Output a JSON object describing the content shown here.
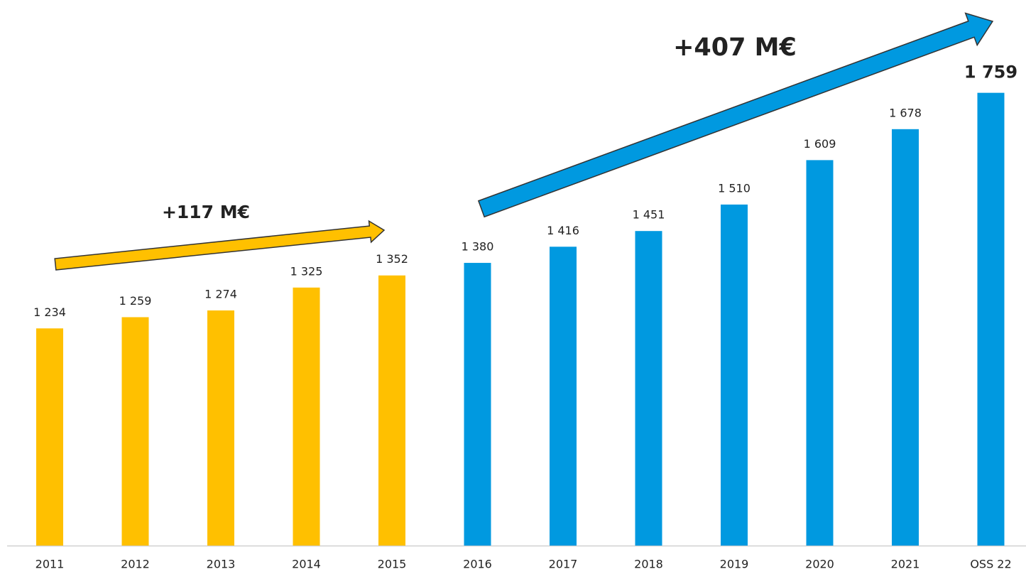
{
  "chart_data": {
    "type": "bar",
    "categories": [
      "2011",
      "2012",
      "2013",
      "2014",
      "2015",
      "2016",
      "2017",
      "2018",
      "2019",
      "2020",
      "2021",
      "OSS 22"
    ],
    "values": [
      1234,
      1259,
      1274,
      1325,
      1352,
      1380,
      1416,
      1451,
      1510,
      1609,
      1678,
      1759
    ],
    "value_labels": [
      "1 234",
      "1 259",
      "1 274",
      "1 325",
      "1 352",
      "1 380",
      "1 416",
      "1 451",
      "1 510",
      "1 609",
      "1 678",
      "1 759"
    ],
    "colors": [
      "#FFC000",
      "#FFC000",
      "#FFC000",
      "#FFC000",
      "#FFC000",
      "#0099E0",
      "#0099E0",
      "#0099E0",
      "#0099E0",
      "#0099E0",
      "#0099E0",
      "#0099E0"
    ],
    "ylim": [
      750,
      1950
    ],
    "annotations": [
      "+117 M€",
      "+407 M€"
    ]
  }
}
